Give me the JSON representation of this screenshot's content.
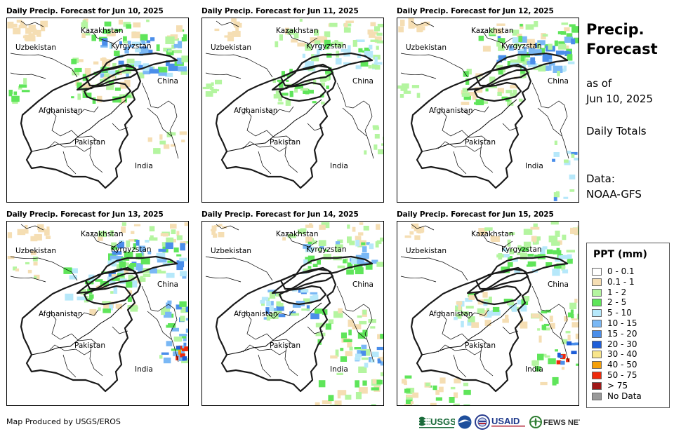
{
  "panels": [
    {
      "title": "Daily Precip. Forecast for Jun 10, 2025"
    },
    {
      "title": "Daily Precip. Forecast for Jun 11, 2025"
    },
    {
      "title": "Daily Precip. Forecast for Jun 12, 2025"
    },
    {
      "title": "Daily Precip. Forecast for Jun 13, 2025"
    },
    {
      "title": "Daily Precip. Forecast for Jun 14, 2025"
    },
    {
      "title": "Daily Precip. Forecast for Jun 15, 2025"
    }
  ],
  "map_labels": {
    "kazakhstan": "Kazakhstan",
    "uzbekistan": "Uzbekistan",
    "kyrgyzstan": "Kyrgyzstan",
    "china": "China",
    "afghanistan": "Afghanistan",
    "pakistan": "Pakistan",
    "india": "India"
  },
  "side": {
    "title_line1": "Precip.",
    "title_line2": "Forecast",
    "as_of": "as of",
    "date": "Jun 10, 2025",
    "totals": "Daily Totals",
    "data_label": "Data:",
    "data_source": "NOAA-GFS"
  },
  "legend": {
    "title": "PPT (mm)",
    "items": [
      {
        "label": "0 - 0.1",
        "color": "#ffffff"
      },
      {
        "label": "0.1 - 1",
        "color": "#f5deb3"
      },
      {
        "label": "1 - 2",
        "color": "#b4f5a0"
      },
      {
        "label": "2 - 5",
        "color": "#5fe55a"
      },
      {
        "label": "5 - 10",
        "color": "#b6e8fa"
      },
      {
        "label": "10 - 15",
        "color": "#7ab8f5"
      },
      {
        "label": "15 - 20",
        "color": "#4a8eea"
      },
      {
        "label": "20 - 30",
        "color": "#1f5ed8"
      },
      {
        "label": "30 - 40",
        "color": "#f8e58a"
      },
      {
        "label": "40 - 50",
        "color": "#f5a00a"
      },
      {
        "label": "50 - 75",
        "color": "#ee2a0c"
      },
      {
        "label": "> 75",
        "color": "#a01818"
      },
      {
        "label": "No Data",
        "color": "#999999"
      }
    ]
  },
  "footer": {
    "credit": "Map Produced by USGS/EROS",
    "logo_usgs": "USGS",
    "logo_usaid": "USAID",
    "logo_fewsnet": "FEWS NET"
  }
}
